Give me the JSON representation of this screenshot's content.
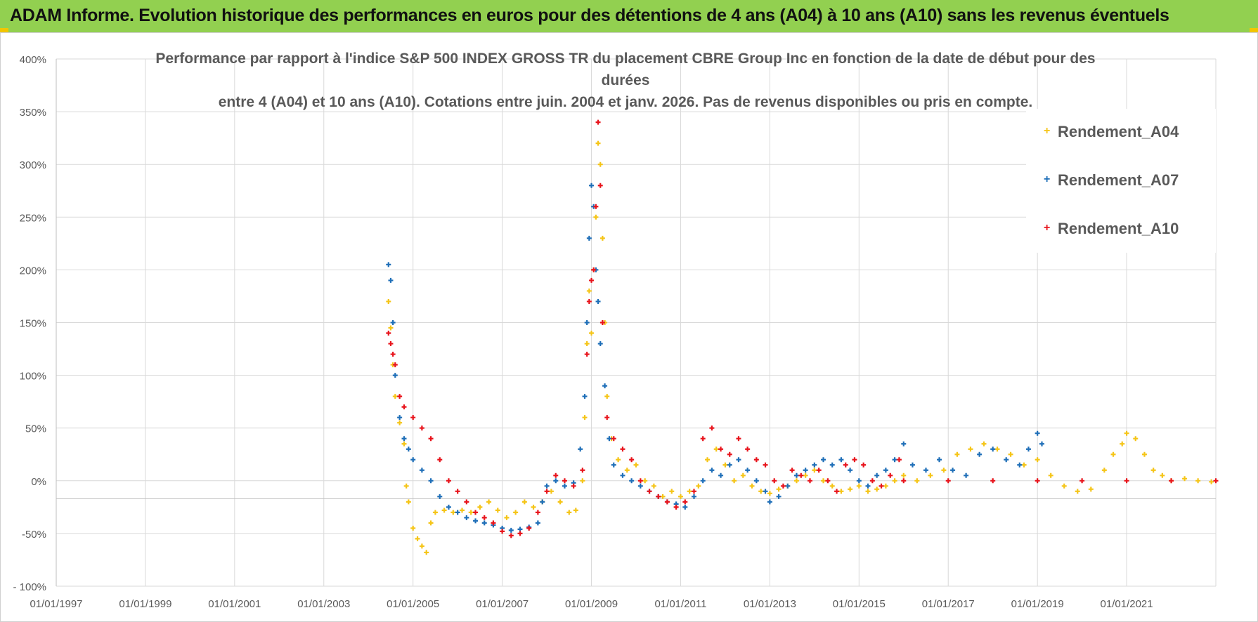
{
  "header": {
    "title": "ADAM Informe. Evolution historique des performances en euros pour des détentions de 4 ans (A04) à 10 ans (A10) sans les revenus éventuels"
  },
  "colors": {
    "banner": "#92d050",
    "a04": "#f5c518",
    "a07": "#1f6fb8",
    "a10": "#e8141c"
  },
  "chart_data": {
    "type": "scatter",
    "title_line1": "Performance par rapport à l'indice S&P 500 INDEX GROSS TR  du placement CBRE Group Inc en fonction de la date de début pour des durées",
    "title_line2": "entre 4 (A04) et 10 ans (A10). Cotations entre juin. 2004 et janv. 2026. Pas de revenus disponibles ou pris en compte.",
    "xlabel": "",
    "ylabel": "",
    "xlim": [
      1997.0,
      2023.0
    ],
    "ylim": [
      -100,
      400
    ],
    "grid": true,
    "x_ticks": [
      1997,
      1999,
      2001,
      2003,
      2005,
      2007,
      2009,
      2011,
      2013,
      2015,
      2017,
      2019,
      2021
    ],
    "x_tick_labels": [
      "01/01/1997",
      "01/01/1999",
      "01/01/2001",
      "01/01/2003",
      "01/01/2005",
      "01/01/2007",
      "01/01/2009",
      "01/01/2011",
      "01/01/2013",
      "01/01/2015",
      "01/01/2017",
      "01/01/2019",
      "01/01/2021"
    ],
    "y_ticks": [
      -100,
      -50,
      0,
      50,
      100,
      150,
      200,
      250,
      300,
      350,
      400
    ],
    "y_tick_labels": [
      "- 100%",
      "-50%",
      "0%",
      "50%",
      "100%",
      "150%",
      "200%",
      "250%",
      "300%",
      "350%",
      "400%"
    ],
    "legend_position": "top-right",
    "series": [
      {
        "name": "Rendement_A04",
        "color": "#f5c518",
        "points": [
          [
            2004.45,
            170
          ],
          [
            2004.5,
            145
          ],
          [
            2004.55,
            110
          ],
          [
            2004.6,
            80
          ],
          [
            2004.7,
            55
          ],
          [
            2004.8,
            35
          ],
          [
            2004.85,
            -5
          ],
          [
            2004.9,
            -20
          ],
          [
            2005.0,
            -45
          ],
          [
            2005.1,
            -55
          ],
          [
            2005.2,
            -62
          ],
          [
            2005.3,
            -68
          ],
          [
            2005.4,
            -40
          ],
          [
            2005.5,
            -30
          ],
          [
            2005.7,
            -28
          ],
          [
            2005.9,
            -30
          ],
          [
            2006.1,
            -28
          ],
          [
            2006.3,
            -30
          ],
          [
            2006.5,
            -25
          ],
          [
            2006.7,
            -20
          ],
          [
            2006.9,
            -28
          ],
          [
            2007.1,
            -35
          ],
          [
            2007.3,
            -30
          ],
          [
            2007.5,
            -20
          ],
          [
            2007.7,
            -25
          ],
          [
            2007.9,
            -20
          ],
          [
            2008.1,
            -10
          ],
          [
            2008.3,
            -20
          ],
          [
            2008.5,
            -30
          ],
          [
            2008.65,
            -28
          ],
          [
            2008.8,
            0
          ],
          [
            2008.85,
            60
          ],
          [
            2008.9,
            130
          ],
          [
            2008.95,
            180
          ],
          [
            2009.0,
            140
          ],
          [
            2009.05,
            200
          ],
          [
            2009.1,
            250
          ],
          [
            2009.15,
            320
          ],
          [
            2009.2,
            300
          ],
          [
            2009.25,
            230
          ],
          [
            2009.3,
            150
          ],
          [
            2009.35,
            80
          ],
          [
            2009.45,
            40
          ],
          [
            2009.6,
            20
          ],
          [
            2009.8,
            10
          ],
          [
            2010.0,
            15
          ],
          [
            2010.2,
            0
          ],
          [
            2010.4,
            -5
          ],
          [
            2010.6,
            -15
          ],
          [
            2010.8,
            -10
          ],
          [
            2011.0,
            -15
          ],
          [
            2011.2,
            -10
          ],
          [
            2011.4,
            -5
          ],
          [
            2011.6,
            20
          ],
          [
            2011.8,
            30
          ],
          [
            2012.0,
            15
          ],
          [
            2012.2,
            0
          ],
          [
            2012.4,
            5
          ],
          [
            2012.6,
            -5
          ],
          [
            2012.8,
            -10
          ],
          [
            2013.0,
            -12
          ],
          [
            2013.2,
            -8
          ],
          [
            2013.4,
            -5
          ],
          [
            2013.6,
            0
          ],
          [
            2013.8,
            5
          ],
          [
            2014.0,
            10
          ],
          [
            2014.2,
            0
          ],
          [
            2014.4,
            -5
          ],
          [
            2014.6,
            -10
          ],
          [
            2014.8,
            -8
          ],
          [
            2015.0,
            -5
          ],
          [
            2015.2,
            -10
          ],
          [
            2015.4,
            -8
          ],
          [
            2015.6,
            -5
          ],
          [
            2015.8,
            0
          ],
          [
            2016.0,
            5
          ],
          [
            2016.3,
            0
          ],
          [
            2016.6,
            5
          ],
          [
            2016.9,
            10
          ],
          [
            2017.2,
            25
          ],
          [
            2017.5,
            30
          ],
          [
            2017.8,
            35
          ],
          [
            2018.1,
            30
          ],
          [
            2018.4,
            25
          ],
          [
            2018.7,
            15
          ],
          [
            2019.0,
            20
          ],
          [
            2019.3,
            5
          ],
          [
            2019.6,
            -5
          ],
          [
            2019.9,
            -10
          ],
          [
            2020.2,
            -8
          ],
          [
            2020.5,
            10
          ],
          [
            2020.7,
            25
          ],
          [
            2020.9,
            35
          ],
          [
            2021.0,
            45
          ],
          [
            2021.2,
            40
          ],
          [
            2021.4,
            25
          ],
          [
            2021.6,
            10
          ],
          [
            2021.8,
            5
          ],
          [
            2022.0,
            0
          ],
          [
            2022.3,
            2
          ],
          [
            2022.6,
            0
          ],
          [
            2022.9,
            -1
          ]
        ]
      },
      {
        "name": "Rendement_A07",
        "color": "#1f6fb8",
        "points": [
          [
            2004.45,
            205
          ],
          [
            2004.5,
            190
          ],
          [
            2004.55,
            150
          ],
          [
            2004.6,
            100
          ],
          [
            2004.7,
            60
          ],
          [
            2004.8,
            40
          ],
          [
            2004.9,
            30
          ],
          [
            2005.0,
            20
          ],
          [
            2005.2,
            10
          ],
          [
            2005.4,
            0
          ],
          [
            2005.6,
            -15
          ],
          [
            2005.8,
            -25
          ],
          [
            2006.0,
            -30
          ],
          [
            2006.2,
            -35
          ],
          [
            2006.4,
            -38
          ],
          [
            2006.6,
            -40
          ],
          [
            2006.8,
            -42
          ],
          [
            2007.0,
            -45
          ],
          [
            2007.2,
            -47
          ],
          [
            2007.4,
            -46
          ],
          [
            2007.6,
            -44
          ],
          [
            2007.8,
            -40
          ],
          [
            2007.9,
            -20
          ],
          [
            2008.0,
            -5
          ],
          [
            2008.2,
            0
          ],
          [
            2008.4,
            -5
          ],
          [
            2008.6,
            -2
          ],
          [
            2008.75,
            30
          ],
          [
            2008.85,
            80
          ],
          [
            2008.9,
            150
          ],
          [
            2008.95,
            230
          ],
          [
            2009.0,
            280
          ],
          [
            2009.05,
            260
          ],
          [
            2009.1,
            200
          ],
          [
            2009.15,
            170
          ],
          [
            2009.2,
            130
          ],
          [
            2009.3,
            90
          ],
          [
            2009.4,
            40
          ],
          [
            2009.5,
            15
          ],
          [
            2009.7,
            5
          ],
          [
            2009.9,
            0
          ],
          [
            2010.1,
            -5
          ],
          [
            2010.3,
            -10
          ],
          [
            2010.5,
            -15
          ],
          [
            2010.7,
            -20
          ],
          [
            2010.9,
            -22
          ],
          [
            2011.1,
            -25
          ],
          [
            2011.3,
            -15
          ],
          [
            2011.5,
            0
          ],
          [
            2011.7,
            10
          ],
          [
            2011.9,
            5
          ],
          [
            2012.1,
            15
          ],
          [
            2012.3,
            20
          ],
          [
            2012.5,
            10
          ],
          [
            2012.7,
            0
          ],
          [
            2012.9,
            -10
          ],
          [
            2013.0,
            -20
          ],
          [
            2013.2,
            -15
          ],
          [
            2013.4,
            -5
          ],
          [
            2013.6,
            5
          ],
          [
            2013.8,
            10
          ],
          [
            2014.0,
            15
          ],
          [
            2014.2,
            20
          ],
          [
            2014.4,
            15
          ],
          [
            2014.6,
            20
          ],
          [
            2014.8,
            10
          ],
          [
            2015.0,
            0
          ],
          [
            2015.2,
            -5
          ],
          [
            2015.4,
            5
          ],
          [
            2015.6,
            10
          ],
          [
            2015.8,
            20
          ],
          [
            2016.0,
            35
          ],
          [
            2016.2,
            15
          ],
          [
            2016.5,
            10
          ],
          [
            2016.8,
            20
          ],
          [
            2017.1,
            10
          ],
          [
            2017.4,
            5
          ],
          [
            2017.7,
            25
          ],
          [
            2018.0,
            30
          ],
          [
            2018.3,
            20
          ],
          [
            2018.6,
            15
          ],
          [
            2018.8,
            30
          ],
          [
            2019.0,
            45
          ],
          [
            2019.1,
            35
          ]
        ]
      },
      {
        "name": "Rendement_A10",
        "color": "#e8141c",
        "points": [
          [
            2004.45,
            140
          ],
          [
            2004.5,
            130
          ],
          [
            2004.55,
            120
          ],
          [
            2004.6,
            110
          ],
          [
            2004.7,
            80
          ],
          [
            2004.8,
            70
          ],
          [
            2005.0,
            60
          ],
          [
            2005.2,
            50
          ],
          [
            2005.4,
            40
          ],
          [
            2005.6,
            20
          ],
          [
            2005.8,
            0
          ],
          [
            2006.0,
            -10
          ],
          [
            2006.2,
            -20
          ],
          [
            2006.4,
            -30
          ],
          [
            2006.6,
            -35
          ],
          [
            2006.8,
            -40
          ],
          [
            2007.0,
            -48
          ],
          [
            2007.2,
            -52
          ],
          [
            2007.4,
            -50
          ],
          [
            2007.6,
            -45
          ],
          [
            2007.8,
            -30
          ],
          [
            2008.0,
            -10
          ],
          [
            2008.2,
            5
          ],
          [
            2008.4,
            0
          ],
          [
            2008.6,
            -5
          ],
          [
            2008.8,
            10
          ],
          [
            2008.9,
            120
          ],
          [
            2008.95,
            170
          ],
          [
            2009.0,
            190
          ],
          [
            2009.05,
            200
          ],
          [
            2009.1,
            260
          ],
          [
            2009.15,
            340
          ],
          [
            2009.2,
            280
          ],
          [
            2009.25,
            150
          ],
          [
            2009.35,
            60
          ],
          [
            2009.5,
            40
          ],
          [
            2009.7,
            30
          ],
          [
            2009.9,
            20
          ],
          [
            2010.1,
            0
          ],
          [
            2010.3,
            -10
          ],
          [
            2010.5,
            -15
          ],
          [
            2010.7,
            -20
          ],
          [
            2010.9,
            -25
          ],
          [
            2011.1,
            -20
          ],
          [
            2011.3,
            -10
          ],
          [
            2011.5,
            40
          ],
          [
            2011.7,
            50
          ],
          [
            2011.9,
            30
          ],
          [
            2012.1,
            25
          ],
          [
            2012.3,
            40
          ],
          [
            2012.5,
            30
          ],
          [
            2012.7,
            20
          ],
          [
            2012.9,
            15
          ],
          [
            2013.1,
            0
          ],
          [
            2013.3,
            -5
          ],
          [
            2013.5,
            10
          ],
          [
            2013.7,
            5
          ],
          [
            2013.9,
            0
          ],
          [
            2014.1,
            10
          ],
          [
            2014.3,
            0
          ],
          [
            2014.5,
            -10
          ],
          [
            2014.7,
            15
          ],
          [
            2014.9,
            20
          ],
          [
            2015.1,
            15
          ],
          [
            2015.3,
            0
          ],
          [
            2015.5,
            -5
          ],
          [
            2015.7,
            5
          ],
          [
            2015.9,
            20
          ],
          [
            2016.0,
            0
          ],
          [
            2017.0,
            0
          ],
          [
            2018.0,
            0
          ],
          [
            2019.0,
            0
          ],
          [
            2020.0,
            0
          ],
          [
            2021.0,
            0
          ],
          [
            2022.0,
            0
          ],
          [
            2023.0,
            0
          ]
        ]
      }
    ]
  }
}
